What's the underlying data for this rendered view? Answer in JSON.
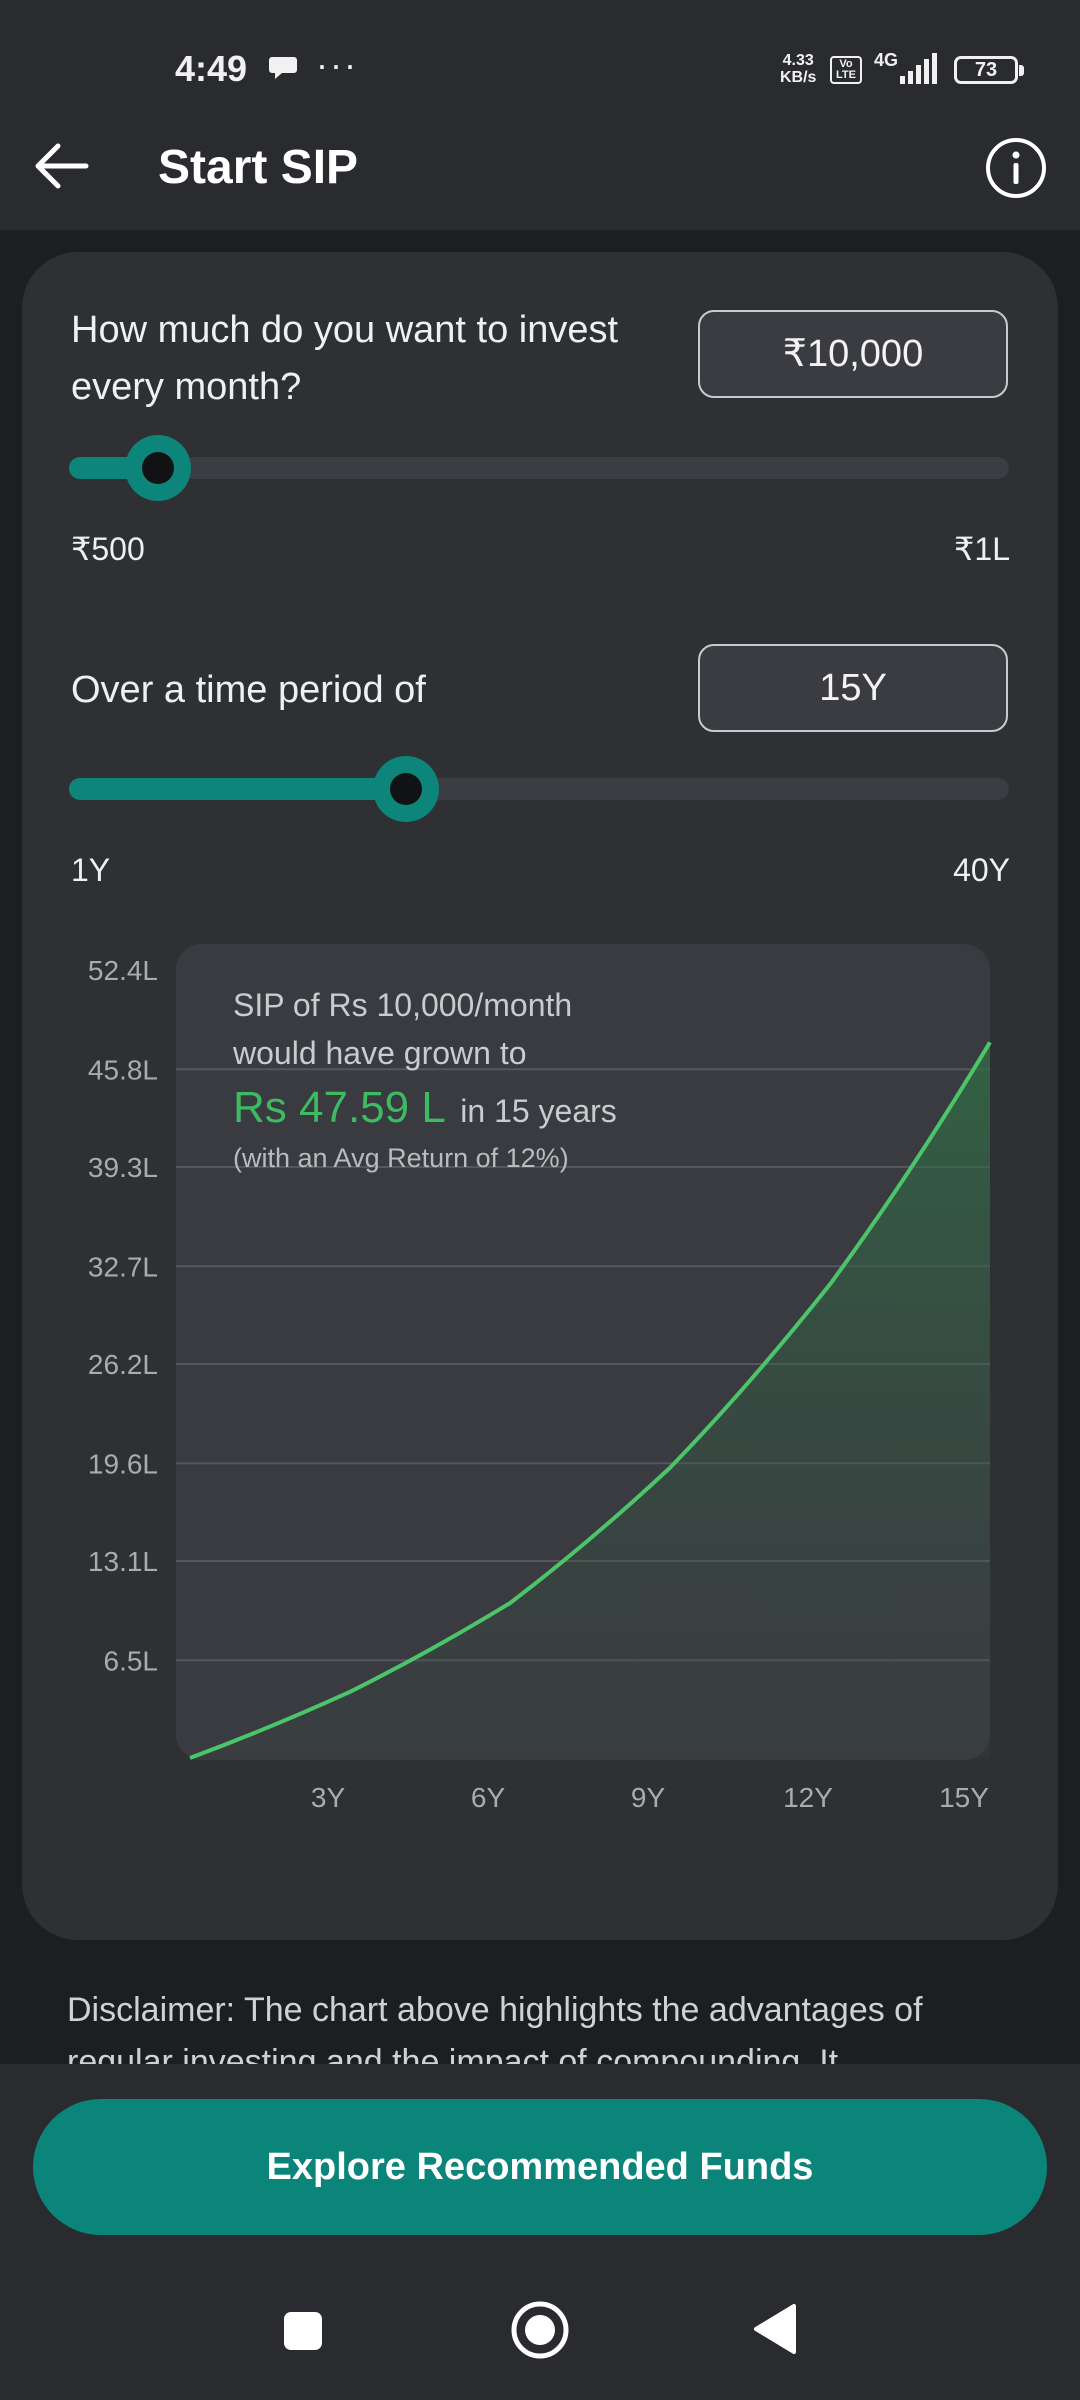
{
  "status_bar": {
    "time": "4:49",
    "speed_value": "4.33",
    "speed_unit": "KB/s",
    "volte": "Vo LTE",
    "network": "4G",
    "battery": "73"
  },
  "header": {
    "title": "Start SIP",
    "back_icon": "arrow-left-icon",
    "info_icon": "info-icon"
  },
  "investment": {
    "question_line1": "How much do you want to invest",
    "question_line2": "every month?",
    "value": "₹10,000",
    "slider_min_label": "₹500",
    "slider_max_label": "₹1L",
    "slider_fraction": 0.095
  },
  "period": {
    "question": "Over a time period of",
    "value": "15Y",
    "slider_min_label": "1Y",
    "slider_max_label": "40Y",
    "slider_fraction": 0.359
  },
  "summary": {
    "line1": "SIP of Rs 10,000/month",
    "line2": "would have grown to",
    "amount": "Rs 47.59 L",
    "duration": "in 15 years",
    "note": "(with an Avg Return of 12%)"
  },
  "chart_data": {
    "type": "area",
    "x": [
      0,
      3,
      6,
      9,
      12,
      15
    ],
    "x_tick_labels": [
      "3Y",
      "6Y",
      "9Y",
      "12Y",
      "15Y"
    ],
    "x_ticks": [
      3,
      6,
      9,
      12,
      15
    ],
    "y_tick_labels": [
      "52.4L",
      "45.8L",
      "39.3L",
      "32.7L",
      "26.2L",
      "19.6L",
      "13.1L",
      "6.5L"
    ],
    "y_ticks": [
      52.4,
      45.8,
      39.3,
      32.7,
      26.2,
      19.6,
      13.1,
      6.5
    ],
    "xlim": [
      0,
      15
    ],
    "ylim": [
      0,
      52.4
    ],
    "series": [
      {
        "values": [
          0,
          4.4,
          10.3,
          19.3,
          31.5,
          47.59
        ]
      }
    ],
    "grid": true,
    "line_color": "#4cc46a"
  },
  "disclaimer": "Disclaimer: The chart above highlights the advantages of regular investing and the impact of compounding. It",
  "cta": {
    "label": "Explore Recommended Funds"
  },
  "nav": {
    "recents_icon": "square-icon",
    "home_icon": "circle-icon",
    "back_icon": "triangle-back-icon"
  }
}
